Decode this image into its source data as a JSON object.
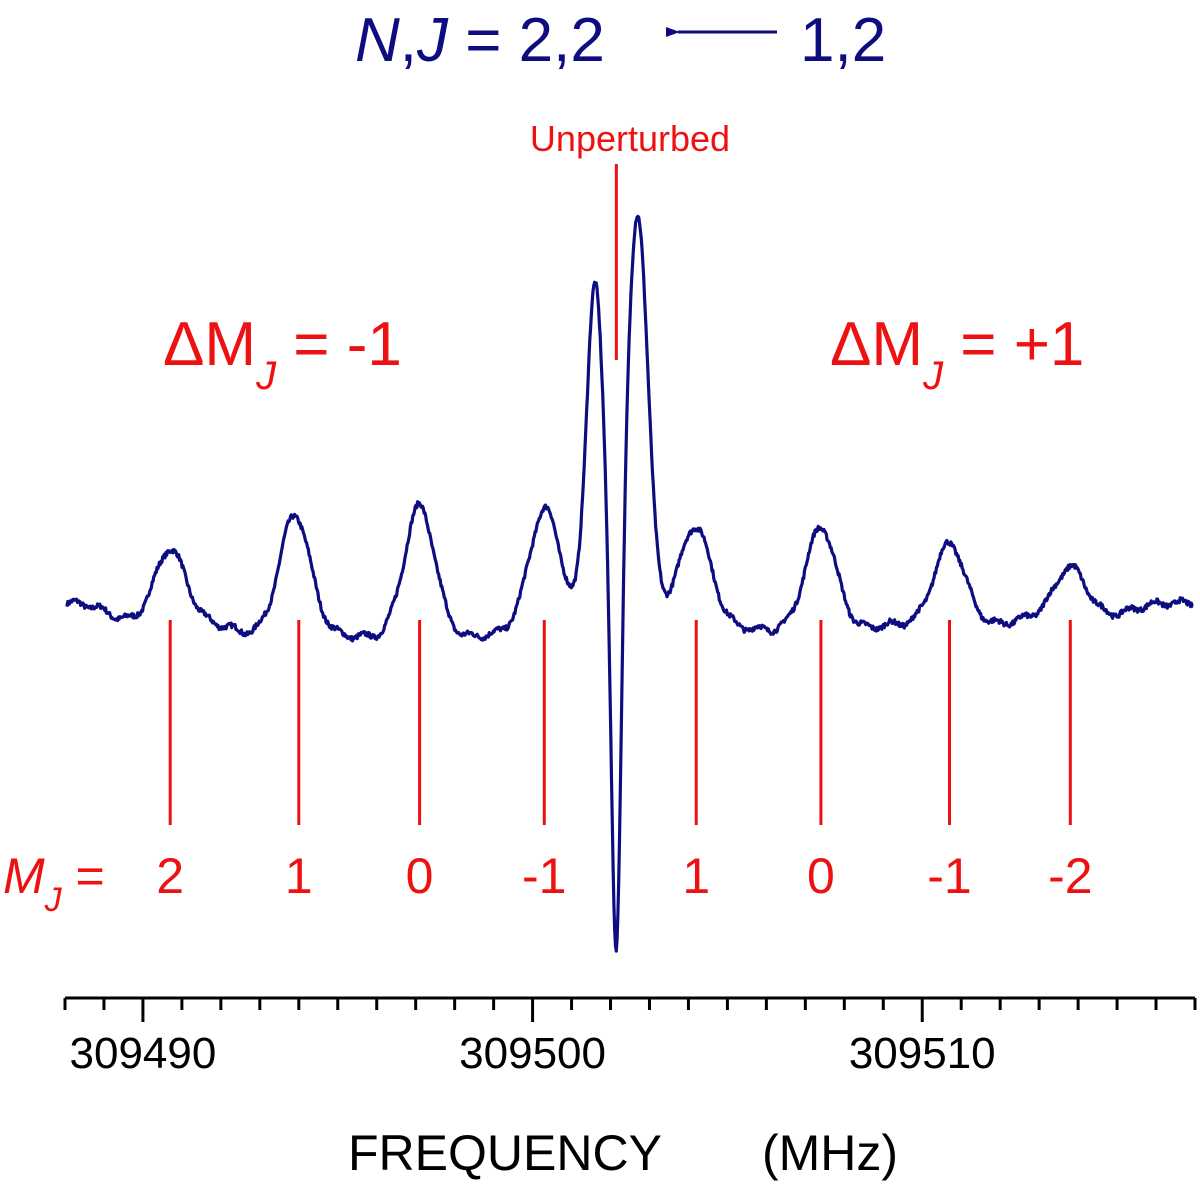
{
  "chart_data": {
    "type": "line",
    "title": {
      "var_n": "N",
      "comma": ",",
      "var_j": "J",
      "upper": " = 2,2",
      "lower": "1,2"
    },
    "xlabel": {
      "main": "FREQUENCY",
      "unit": "(MHz)"
    },
    "xlim": [
      309488.0,
      309517.0
    ],
    "x_ticks": [
      309490,
      309500,
      309510
    ],
    "x_tick_labels": [
      "309490",
      "309500",
      "309510"
    ],
    "x_minor_step": 1,
    "grid": false,
    "colors": {
      "spectrum": "#0d0d80",
      "annotation": "#ee1111",
      "axis": "#000000",
      "title": "#0d0d80"
    },
    "delta_left": {
      "symbol": "ΔM",
      "subscript": "J",
      "value": " = -1"
    },
    "delta_right": {
      "symbol": "ΔM",
      "subscript": "J",
      "value": " = +1"
    },
    "mj_prefix": {
      "symbol": "M",
      "subscript": "J",
      "equals": " = "
    },
    "unperturbed": {
      "label": "Unperturbed",
      "frequency": 309502.15
    },
    "stick_lines": [
      {
        "frequency": 309490.7,
        "mj": "2"
      },
      {
        "frequency": 309494.0,
        "mj": "1"
      },
      {
        "frequency": 309497.1,
        "mj": "0"
      },
      {
        "frequency": 309500.3,
        "mj": "-1"
      },
      {
        "frequency": 309504.2,
        "mj": "1"
      },
      {
        "frequency": 309507.4,
        "mj": "0"
      },
      {
        "frequency": 309510.7,
        "mj": "-1"
      },
      {
        "frequency": 309513.8,
        "mj": "-2"
      }
    ],
    "series": [
      {
        "baseline": 0,
        "y_range": [
          -390,
          410
        ],
        "peaks": [
          {
            "x": 309490.7,
            "amplitude": 57
          },
          {
            "x": 309493.9,
            "amplitude": 93
          },
          {
            "x": 309497.1,
            "amplitude": 102
          },
          {
            "x": 309500.3,
            "amplitude": 87
          },
          {
            "x": 309504.2,
            "amplitude": 72
          },
          {
            "x": 309507.4,
            "amplitude": 80
          },
          {
            "x": 309510.7,
            "amplitude": 63
          },
          {
            "x": 309513.8,
            "amplitude": 38
          }
        ],
        "central_pair": {
          "left": {
            "x": 309501.6,
            "amplitude": 340
          },
          "right": {
            "x": 309502.7,
            "amplitude": 402
          },
          "trough": -390
        }
      }
    ]
  }
}
